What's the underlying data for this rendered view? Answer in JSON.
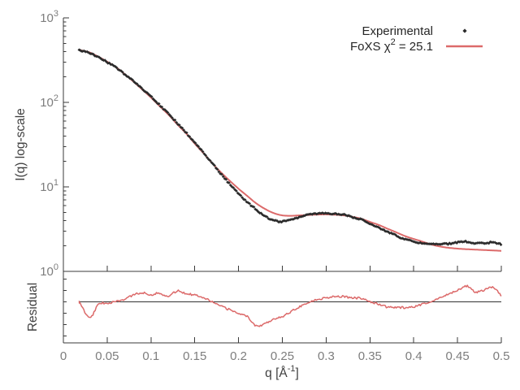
{
  "chart_data": {
    "type": "line",
    "title": "",
    "chi_squared": 25.1,
    "xlabel_parts": [
      "q [Å",
      "^-1",
      "]"
    ],
    "xlim": [
      0,
      0.5
    ],
    "x_ticks": [
      "0",
      "0.05",
      "0.1",
      "0.15",
      "0.2",
      "0.25",
      "0.3",
      "0.35",
      "0.4",
      "0.45",
      "0.5"
    ],
    "x_tick_values": [
      0,
      0.05,
      0.1,
      0.15,
      0.2,
      0.25,
      0.3,
      0.35,
      0.4,
      0.45,
      0.5
    ],
    "q": [
      0.018,
      0.02,
      0.03,
      0.04,
      0.05,
      0.06,
      0.07,
      0.08,
      0.09,
      0.1,
      0.11,
      0.12,
      0.13,
      0.14,
      0.15,
      0.16,
      0.17,
      0.18,
      0.19,
      0.2,
      0.21,
      0.22,
      0.23,
      0.24,
      0.25,
      0.26,
      0.27,
      0.28,
      0.29,
      0.3,
      0.31,
      0.32,
      0.33,
      0.34,
      0.35,
      0.36,
      0.37,
      0.38,
      0.39,
      0.4,
      0.41,
      0.42,
      0.43,
      0.44,
      0.45,
      0.46,
      0.47,
      0.48,
      0.49,
      0.5
    ],
    "main_panel": {
      "ylabel": "I(q) log-scale",
      "yscale": "log",
      "ylim": [
        1,
        1000
      ],
      "y_ticks": [
        "10^0",
        "10^1",
        "10^2",
        "10^3"
      ],
      "y_tick_values": [
        1,
        10,
        100,
        1000
      ],
      "grid": false,
      "series": [
        {
          "name": "Experimental",
          "style": "points",
          "marker": "diamond",
          "color": "#2b2b2b",
          "values": [
            420,
            410,
            385,
            342,
            298,
            258,
            215,
            178,
            145,
            117,
            93,
            73,
            57,
            44,
            33.5,
            25.5,
            19,
            14.2,
            10.8,
            8.3,
            6.6,
            5.4,
            4.5,
            4.0,
            3.9,
            4.1,
            4.4,
            4.7,
            4.8,
            4.85,
            4.8,
            4.7,
            4.4,
            4.1,
            3.7,
            3.3,
            2.95,
            2.65,
            2.4,
            2.25,
            2.15,
            2.1,
            2.1,
            2.12,
            2.2,
            2.25,
            2.15,
            2.15,
            2.2,
            2.1
          ]
        },
        {
          "name": "FoXS",
          "style": "line",
          "color": "#dc6a6a",
          "values": [
            422,
            414,
            390,
            347,
            303,
            261,
            216,
            176,
            142,
            114,
            90,
            71.5,
            55,
            43,
            32.5,
            25,
            19,
            14.8,
            11.8,
            9.5,
            7.8,
            6.4,
            5.5,
            4.9,
            4.6,
            4.55,
            4.6,
            4.65,
            4.7,
            4.72,
            4.68,
            4.6,
            4.42,
            4.2,
            3.85,
            3.55,
            3.2,
            2.9,
            2.62,
            2.42,
            2.25,
            2.08,
            1.97,
            1.9,
            1.86,
            1.83,
            1.81,
            1.79,
            1.77,
            1.75
          ]
        }
      ]
    },
    "residual_panel": {
      "ylabel": "Residual",
      "yscale": "linear",
      "ylim": [
        0.28,
        1.54
      ],
      "baseline": 1.0,
      "baseline_color": "#333333",
      "color": "#dc6a6a",
      "tick_values": [
        0.4,
        0.6,
        0.8,
        1.0,
        1.2,
        1.4
      ],
      "values": [
        1.0,
        0.95,
        0.72,
        0.95,
        0.98,
        1.0,
        1.05,
        1.12,
        1.16,
        1.13,
        1.15,
        1.1,
        1.19,
        1.15,
        1.12,
        1.08,
        1.0,
        0.92,
        0.86,
        0.8,
        0.74,
        0.58,
        0.62,
        0.7,
        0.74,
        0.83,
        0.92,
        0.99,
        1.04,
        1.07,
        1.1,
        1.09,
        1.07,
        1.06,
        1.0,
        0.96,
        0.91,
        0.9,
        0.9,
        0.91,
        0.96,
        1.01,
        1.07,
        1.14,
        1.2,
        1.28,
        1.18,
        1.2,
        1.26,
        1.1
      ]
    },
    "legend": {
      "position": "top-right",
      "entries": [
        {
          "label_parts": [
            "Experimental"
          ],
          "sample": "point",
          "color": "#2b2b2b"
        },
        {
          "label_parts": [
            "FoXS χ",
            "^2",
            " = 25.1"
          ],
          "sample": "line",
          "color": "#dc6a6a"
        }
      ]
    }
  }
}
